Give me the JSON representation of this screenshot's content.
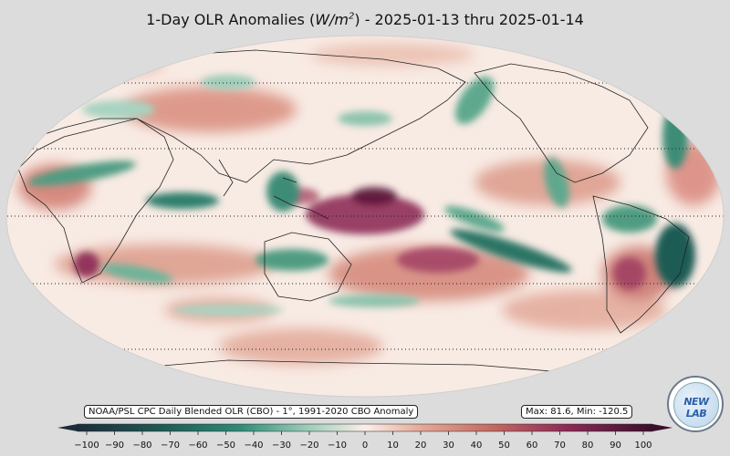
{
  "title_prefix": "1-Day OLR Anomalies (",
  "title_unit": "W/m",
  "title_unit_exp": "2",
  "title_suffix": ") - 2025-01-13 thru 2025-01-14",
  "source_label": "NOAA/PSL CPC Daily Blended OLR (CBO) - 1°, 1991-2020 CBO Anomaly",
  "stats_label": "Max: 81.6,  Min: -120.5",
  "colorbar": {
    "ticks": [
      "−100",
      "−90",
      "−80",
      "−70",
      "−60",
      "−50",
      "−40",
      "−30",
      "−20",
      "−10",
      "0",
      "10",
      "20",
      "30",
      "40",
      "50",
      "60",
      "70",
      "80",
      "90",
      "100"
    ],
    "min": -100,
    "max": 100,
    "colors": {
      "neg_extreme": "#1d2b3a",
      "neg_strong": "#1f5c55",
      "neg_mid": "#2f8a76",
      "neg_light": "#9ccdb9",
      "neutral": "#fbefe9",
      "pos_light": "#e4a796",
      "pos_mid": "#c46a62",
      "pos_strong": "#8e2b57",
      "pos_extreme": "#3a0f2b"
    }
  },
  "logo_text": "NEW LAB"
}
